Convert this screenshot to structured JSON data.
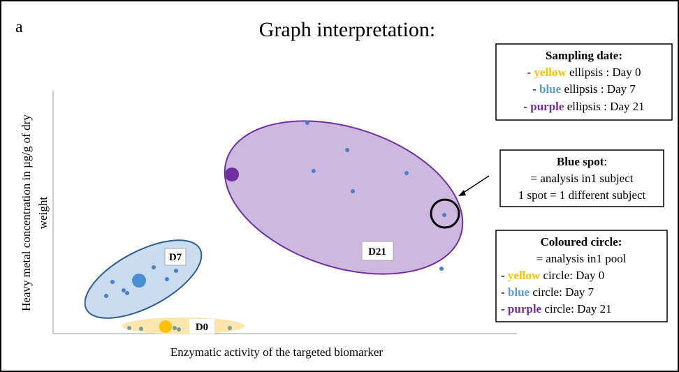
{
  "panel_label": "a",
  "title": "Graph interpretation:",
  "y_axis_label": [
    "Heavy metal concentration in µg/g of dry",
    "weight"
  ],
  "x_axis_label": "Enzymatic activity of the targeted biomarker",
  "groups": {
    "d7": "D7",
    "d21": "D21",
    "d0": "D0"
  },
  "sampling_box": {
    "heading": "Sampling date:",
    "lines": [
      {
        "prefix": "- ",
        "word": "yellow",
        "rest": " ellipsis : Day 0"
      },
      {
        "prefix": "- ",
        "word": "blue",
        "rest": " ellipsis : Day 7"
      },
      {
        "prefix": "- ",
        "word": "purple",
        "rest": " ellipsis : Day 21"
      }
    ]
  },
  "spot_box": {
    "heading": "Blue spot",
    "colon": ":",
    "lines": [
      "= analysis in1 subject",
      "1 spot = 1 different subject"
    ]
  },
  "circle_box": {
    "heading": "Coloured circle:",
    "intro": "= analysis in1 pool",
    "lines": [
      {
        "prefix": "- ",
        "word": "yellow",
        "rest": " circle: Day 0"
      },
      {
        "prefix": "- ",
        "word": "blue",
        "rest": " circle: Day 7"
      },
      {
        "prefix": "- ",
        "word": "purple",
        "rest": " circle: Day 21"
      }
    ]
  }
}
